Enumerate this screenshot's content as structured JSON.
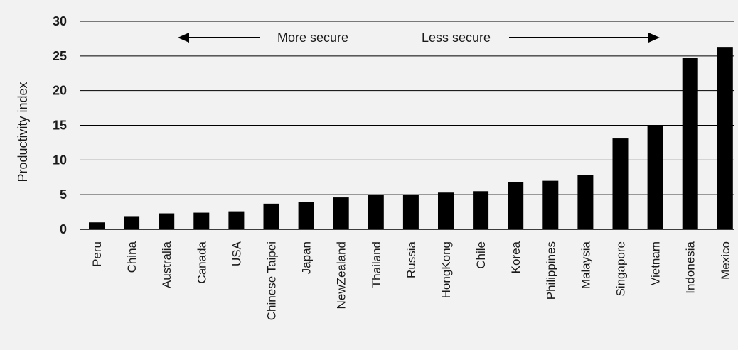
{
  "chart_data": {
    "type": "bar",
    "categories": [
      "Peru",
      "China",
      "Australia",
      "Canada",
      "USA",
      "Chinese Taipei",
      "Japan",
      "NewZealand",
      "Thailand",
      "Russia",
      "HongKong",
      "Chile",
      "Korea",
      "Philippines",
      "Malaysia",
      "Singapore",
      "Vietnam",
      "Indonesia",
      "Mexico"
    ],
    "values": [
      1.0,
      1.9,
      2.3,
      2.4,
      2.6,
      3.7,
      3.9,
      4.6,
      5.0,
      5.0,
      5.3,
      5.5,
      6.8,
      7.0,
      7.8,
      13.1,
      14.9,
      24.7,
      26.3
    ],
    "title": "",
    "xlabel": "",
    "ylabel": "Productivity index",
    "ylim": [
      0,
      30
    ],
    "yticks": [
      "0",
      "5",
      "10",
      "15",
      "20",
      "25",
      "30"
    ],
    "grid": true,
    "bar_color": "#000000",
    "annotations": {
      "left": "More secure",
      "right": "Less secure"
    }
  },
  "colors": {
    "background": "#f2f2f2",
    "bar": "#000000",
    "gridline": "#000000"
  }
}
